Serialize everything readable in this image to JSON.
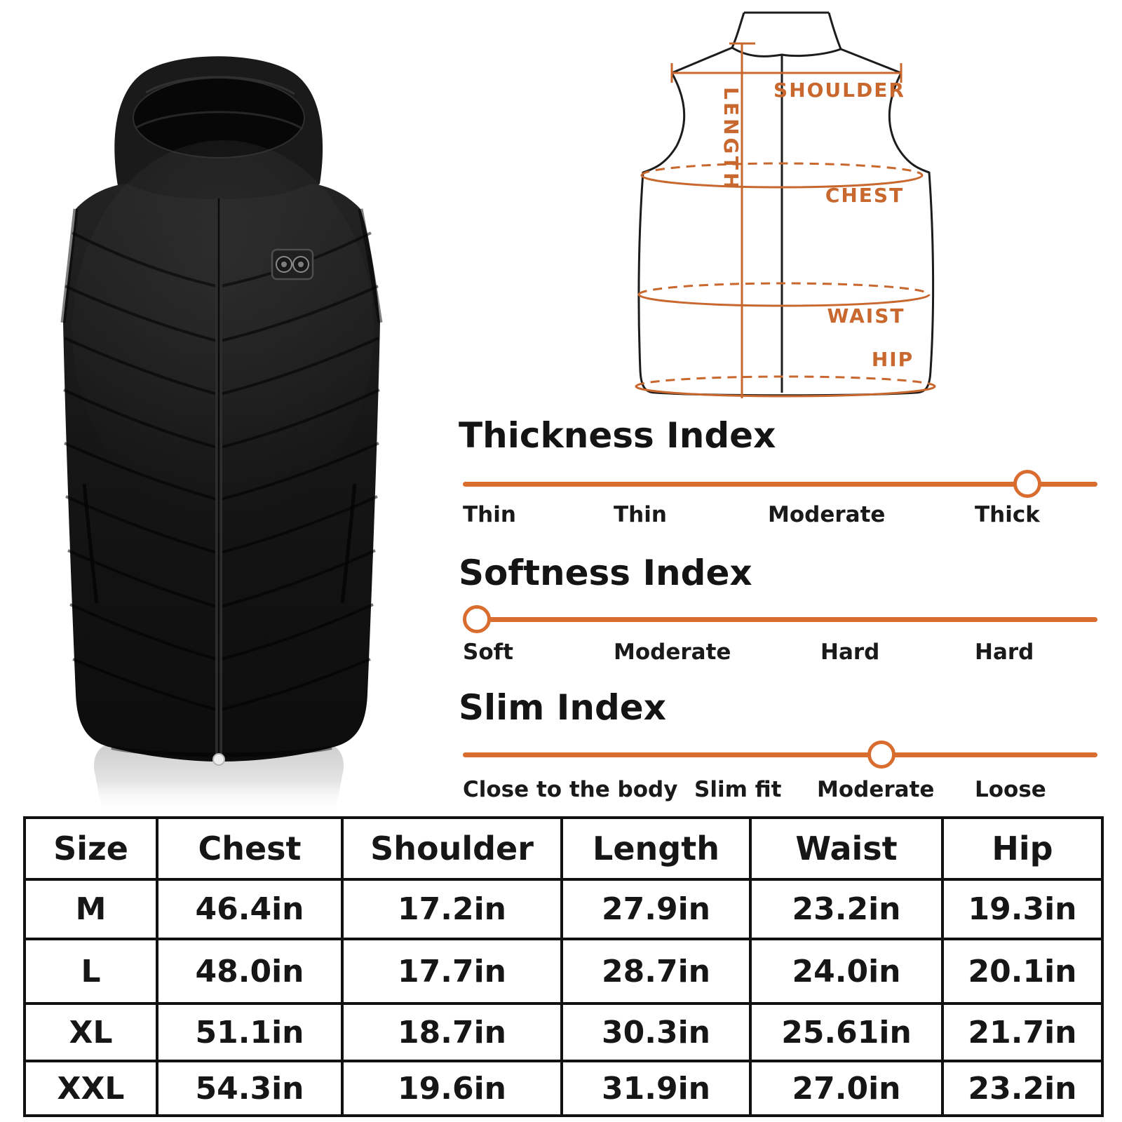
{
  "colors": {
    "diagram_orange": "#c8682e",
    "slider_orange": "#d96c2f",
    "table_border": "#111111",
    "vest_black": "#161616"
  },
  "vest_photo": {
    "item": "black-puffer-vest",
    "patch_icon": "heat-control-buttons"
  },
  "diagram": {
    "labels": [
      "SHOULDER",
      "LENGTH",
      "CHEST",
      "WAIST",
      "HIP"
    ]
  },
  "indexes": [
    {
      "title": "Thickness Index",
      "labels": [
        "Thin",
        "Thin",
        "Moderate",
        "Thick"
      ],
      "knob_percent": 89
    },
    {
      "title": "Softness Index",
      "labels": [
        "Soft",
        "Moderate",
        "Hard",
        "Hard"
      ],
      "knob_percent": 2.2
    },
    {
      "title": "Slim Index",
      "labels": [
        "Close to the body",
        "Slim fit",
        "Moderate",
        "Loose"
      ],
      "knob_percent": 66
    }
  ],
  "size_table": {
    "headers": [
      "Size",
      "Chest",
      "Shoulder",
      "Length",
      "Waist",
      "Hip"
    ],
    "rows": [
      [
        "M",
        "46.4in",
        "17.2in",
        "27.9in",
        "23.2in",
        "19.3in"
      ],
      [
        "L",
        "48.0in",
        "17.7in",
        "28.7in",
        "24.0in",
        "20.1in"
      ],
      [
        "XL",
        "51.1in",
        "18.7in",
        "30.3in",
        "25.61in",
        "21.7in"
      ],
      [
        "XXL",
        "54.3in",
        "19.6in",
        "31.9in",
        "27.0in",
        "23.2in"
      ]
    ]
  }
}
